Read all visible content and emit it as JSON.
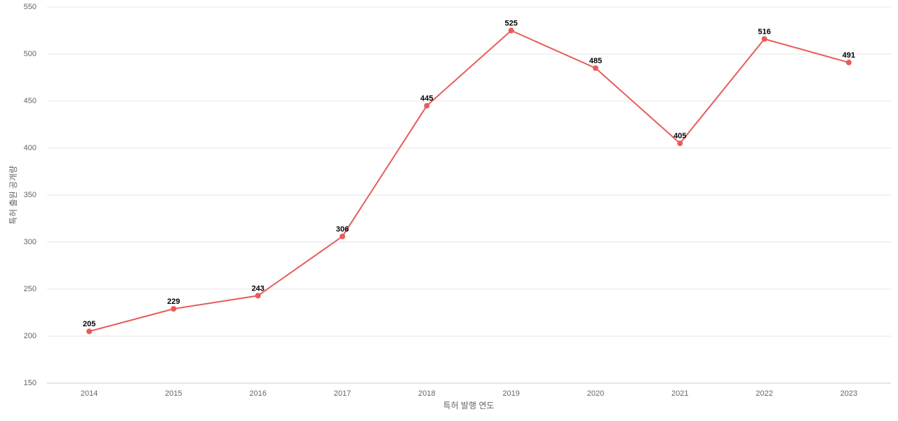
{
  "chart_data": {
    "type": "line",
    "x_label": "특허 발행 연도",
    "y_label": "특허 출원 공개량",
    "categories": [
      "2014",
      "2015",
      "2016",
      "2017",
      "2018",
      "2019",
      "2020",
      "2021",
      "2022",
      "2023"
    ],
    "series": [
      {
        "color": "#e85c5c",
        "values": [
          205,
          229,
          243,
          306,
          445,
          525,
          485,
          405,
          516,
          491
        ]
      }
    ],
    "ylim": [
      150,
      550
    ],
    "yticks": [
      150,
      200,
      250,
      300,
      350,
      400,
      450,
      500,
      550
    ],
    "grid": true,
    "data_labels": true
  }
}
